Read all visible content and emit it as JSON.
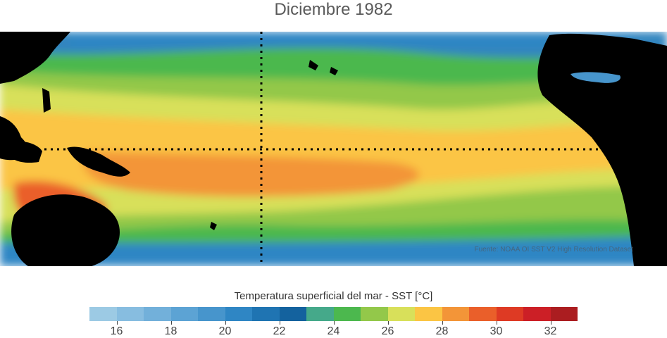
{
  "title": "Diciembre 1982",
  "source": "Fuente: NOAA OI SST V2 High Resolution Dataset",
  "colorbar": {
    "label": "Temperatura superficial del mar - SST  [°C]",
    "min": 15,
    "max": 33,
    "step": 1,
    "ticks": [
      "16",
      "18",
      "20",
      "22",
      "24",
      "26",
      "28",
      "30",
      "32"
    ],
    "tick_values": [
      16,
      18,
      20,
      22,
      24,
      26,
      28,
      30,
      32
    ],
    "colors": [
      "#9ccae4",
      "#87bde0",
      "#72b0da",
      "#5ca3d4",
      "#4795cc",
      "#2f86c4",
      "#1f74b2",
      "#14629e",
      "#45a98a",
      "#4cb84e",
      "#93c84a",
      "#d8e05a",
      "#fbc544",
      "#f39538",
      "#ea5f2a",
      "#de3a24",
      "#cc1f26",
      "#ab1d20"
    ]
  },
  "map": {
    "land_color": "#000000",
    "equator_line": "dotted",
    "meridian_line": "dotted"
  }
}
